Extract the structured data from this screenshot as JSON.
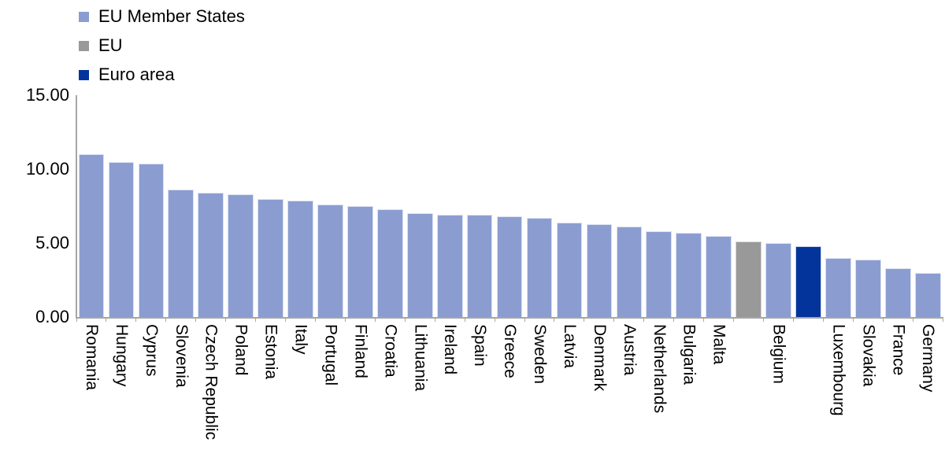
{
  "chart_data": {
    "type": "bar",
    "title": "",
    "xlabel": "",
    "ylabel": "",
    "ylim": [
      0,
      15
    ],
    "grid": false,
    "legend_position": "top-left",
    "axis_color": "#A6A6A6",
    "yticks": [
      {
        "value": 0,
        "label": "0.00"
      },
      {
        "value": 5,
        "label": "5.00"
      },
      {
        "value": 10,
        "label": "10.00"
      },
      {
        "value": 15,
        "label": "15.00"
      }
    ],
    "legend": [
      {
        "key": "member",
        "label": "EU Member States",
        "color": "#8B9DD0"
      },
      {
        "key": "eu",
        "label": "EU",
        "color": "#9A999A"
      },
      {
        "key": "euro",
        "label": "Euro area",
        "color": "#03349B"
      }
    ],
    "colors": {
      "member": "#8B9DD0",
      "eu": "#9A999A",
      "euro": "#03349B"
    },
    "bar_border_colors": {
      "member": "#D8E0F2",
      "eu": "#D4D4D4",
      "euro": "#C7D2EC"
    },
    "bars": [
      {
        "name": "Romania",
        "axis_label": "Romania",
        "value": 11.0,
        "group": "member"
      },
      {
        "name": "Hungary",
        "axis_label": "Hungary",
        "value": 10.5,
        "group": "member"
      },
      {
        "name": "Cyprus",
        "axis_label": "Cyprus",
        "value": 10.4,
        "group": "member"
      },
      {
        "name": "Slovenia",
        "axis_label": "Slovenia",
        "value": 8.6,
        "group": "member"
      },
      {
        "name": "Czech Republic",
        "axis_label": "Czech Republic",
        "value": 8.4,
        "group": "member"
      },
      {
        "name": "Poland",
        "axis_label": "Poland",
        "value": 8.3,
        "group": "member"
      },
      {
        "name": "Estonia",
        "axis_label": "Estonia",
        "value": 8.0,
        "group": "member"
      },
      {
        "name": "Italy",
        "axis_label": "Italy",
        "value": 7.9,
        "group": "member"
      },
      {
        "name": "Portugal",
        "axis_label": "Portugal",
        "value": 7.6,
        "group": "member"
      },
      {
        "name": "Finland",
        "axis_label": "Finland",
        "value": 7.5,
        "group": "member"
      },
      {
        "name": "Croatia",
        "axis_label": "Croatia",
        "value": 7.3,
        "group": "member"
      },
      {
        "name": "Lithuania",
        "axis_label": "Lithuania",
        "value": 7.0,
        "group": "member"
      },
      {
        "name": "Ireland",
        "axis_label": "Ireland",
        "value": 6.9,
        "group": "member"
      },
      {
        "name": "Spain",
        "axis_label": "Spain",
        "value": 6.9,
        "group": "member"
      },
      {
        "name": "Greece",
        "axis_label": "Greece",
        "value": 6.8,
        "group": "member"
      },
      {
        "name": "Sweden",
        "axis_label": "Sweden",
        "value": 6.7,
        "group": "member"
      },
      {
        "name": "Latvia",
        "axis_label": "Latvia",
        "value": 6.4,
        "group": "member"
      },
      {
        "name": "Denmark",
        "axis_label": "Denmark",
        "value": 6.3,
        "group": "member"
      },
      {
        "name": "Austria",
        "axis_label": "Austria",
        "value": 6.1,
        "group": "member"
      },
      {
        "name": "Netherlands",
        "axis_label": "Netherlands",
        "value": 5.8,
        "group": "member"
      },
      {
        "name": "Bulgaria",
        "axis_label": "Bulgaria",
        "value": 5.7,
        "group": "member"
      },
      {
        "name": "Malta",
        "axis_label": "Malta",
        "value": 5.5,
        "group": "member"
      },
      {
        "name": "EU",
        "axis_label": "",
        "value": 5.1,
        "group": "eu"
      },
      {
        "name": "Belgium",
        "axis_label": "Belgium",
        "value": 5.0,
        "group": "member"
      },
      {
        "name": "Euro area",
        "axis_label": "",
        "value": 4.8,
        "group": "euro"
      },
      {
        "name": "Luxembourg",
        "axis_label": "Luxembourg",
        "value": 4.0,
        "group": "member"
      },
      {
        "name": "Slovakia",
        "axis_label": "Slovakia",
        "value": 3.9,
        "group": "member"
      },
      {
        "name": "France",
        "axis_label": "France",
        "value": 3.3,
        "group": "member"
      },
      {
        "name": "Germany",
        "axis_label": "Germany",
        "value": 3.0,
        "group": "member"
      }
    ]
  }
}
